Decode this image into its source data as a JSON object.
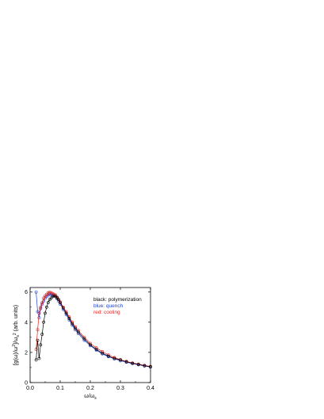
{
  "chart_data": {
    "type": "scatter",
    "xlabel": "ω/ω",
    "xlabel_sub": "s",
    "ylabel": "[g(ω)/ω",
    "ylabel_parts": [
      "[g(ω)/ω",
      "2",
      "]/ω",
      "s",
      "2",
      " (arb. units)"
    ],
    "xlim": [
      0.0,
      0.4
    ],
    "ylim": [
      0.0,
      6.3
    ],
    "x_ticks": [
      0.0,
      0.1,
      0.2,
      0.3,
      0.4
    ],
    "x_tick_labels": [
      "0.0",
      "0.1",
      "0.2",
      "0.3",
      "0.4"
    ],
    "y_ticks": [
      0,
      2,
      4,
      6
    ],
    "y_tick_labels": [
      "0",
      "2",
      "4",
      "6"
    ],
    "legend_position": "top-right",
    "grid": false,
    "series": [
      {
        "name": "black: polymerization",
        "color": "#000000",
        "x": [
          0.02,
          0.025,
          0.03,
          0.035,
          0.04,
          0.045,
          0.05,
          0.055,
          0.06,
          0.065,
          0.07,
          0.075,
          0.08,
          0.085,
          0.09,
          0.095,
          0.1,
          0.11,
          0.12,
          0.13,
          0.14,
          0.15,
          0.16,
          0.18,
          0.2,
          0.22,
          0.24,
          0.26,
          0.28,
          0.3,
          0.32,
          0.34,
          0.36,
          0.38,
          0.4
        ],
        "y": [
          1.5,
          2.8,
          1.6,
          2.5,
          3.2,
          4.0,
          4.6,
          5.0,
          5.3,
          5.5,
          5.6,
          5.7,
          5.75,
          5.7,
          5.6,
          5.5,
          5.3,
          4.95,
          4.6,
          4.25,
          3.9,
          3.6,
          3.35,
          2.9,
          2.5,
          2.2,
          1.95,
          1.75,
          1.6,
          1.5,
          1.38,
          1.28,
          1.2,
          1.12,
          1.05
        ]
      },
      {
        "name": "blue: quench",
        "color": "#1f3fd0",
        "x": [
          0.02,
          0.025,
          0.03,
          0.035,
          0.04,
          0.045,
          0.05,
          0.055,
          0.06,
          0.065,
          0.07,
          0.075,
          0.08,
          0.085,
          0.09,
          0.095,
          0.1,
          0.11,
          0.12,
          0.13,
          0.14,
          0.15,
          0.16,
          0.18,
          0.2,
          0.22,
          0.24,
          0.26,
          0.28,
          0.3,
          0.32,
          0.34,
          0.36,
          0.38,
          0.4
        ],
        "y": [
          6.0,
          4.7,
          4.3,
          4.9,
          5.2,
          5.4,
          5.6,
          5.7,
          5.8,
          5.85,
          5.85,
          5.8,
          5.75,
          5.7,
          5.55,
          5.4,
          5.2,
          4.85,
          4.5,
          4.15,
          3.8,
          3.5,
          3.25,
          2.8,
          2.45,
          2.15,
          1.9,
          1.72,
          1.57,
          1.45,
          1.35,
          1.26,
          1.18,
          1.1,
          1.03
        ]
      },
      {
        "name": "red: cooling",
        "color": "#e8221c",
        "x": [
          0.02,
          0.025,
          0.03,
          0.035,
          0.04,
          0.045,
          0.05,
          0.055,
          0.06,
          0.065,
          0.07,
          0.075,
          0.08,
          0.085,
          0.09,
          0.095,
          0.1,
          0.11,
          0.12,
          0.13,
          0.14,
          0.15,
          0.16,
          0.18,
          0.2,
          0.22,
          0.24,
          0.26,
          0.28,
          0.3,
          0.32,
          0.34,
          0.36,
          0.38,
          0.4
        ],
        "y": [
          2.2,
          3.5,
          4.6,
          5.0,
          5.3,
          5.6,
          5.75,
          5.85,
          5.95,
          6.0,
          5.95,
          5.9,
          5.85,
          5.8,
          5.65,
          5.5,
          5.35,
          5.0,
          4.7,
          4.35,
          4.0,
          3.7,
          3.45,
          3.0,
          2.6,
          2.3,
          2.05,
          1.83,
          1.66,
          1.52,
          1.4,
          1.3,
          1.22,
          1.14,
          1.07
        ]
      }
    ]
  }
}
